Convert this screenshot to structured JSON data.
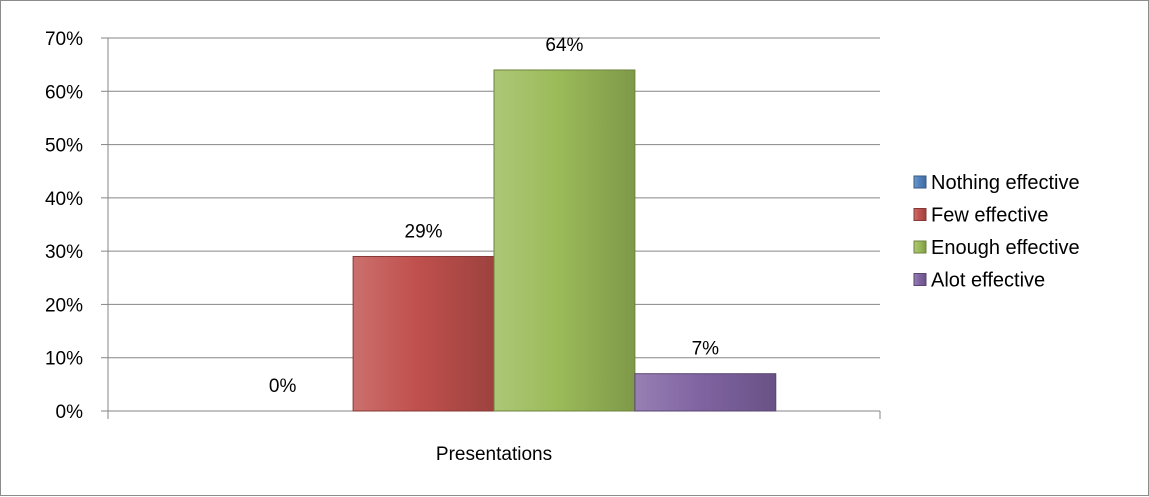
{
  "chart_data": {
    "type": "bar",
    "categories": [
      "Presentations"
    ],
    "series": [
      {
        "name": "Nothing effective",
        "values": [
          0
        ],
        "label": "0%",
        "color": "#4f81bd"
      },
      {
        "name": "Few effective",
        "values": [
          29
        ],
        "label": "29%",
        "color": "#c0504d"
      },
      {
        "name": "Enough effective",
        "values": [
          64
        ],
        "label": "64%",
        "color": "#9bbb59"
      },
      {
        "name": "Alot effective",
        "values": [
          7
        ],
        "label": "7%",
        "color": "#8064a2"
      }
    ],
    "title": "",
    "xlabel": "",
    "ylabel": "",
    "ylim": [
      0,
      70
    ],
    "yticks": [
      "0%",
      "10%",
      "20%",
      "30%",
      "40%",
      "50%",
      "60%",
      "70%"
    ],
    "grid": true,
    "legend_position": "right"
  }
}
